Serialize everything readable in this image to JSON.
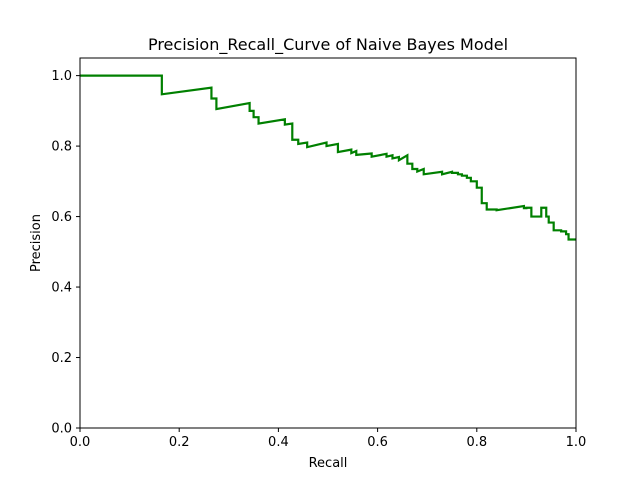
{
  "chart_data": {
    "type": "line",
    "title": "Precision_Recall_Curve of Naive Bayes Model",
    "xlabel": "Recall",
    "ylabel": "Precision",
    "xlim": [
      0.0,
      1.0
    ],
    "ylim": [
      0.0,
      1.05
    ],
    "x_ticks": [
      "0.0",
      "0.2",
      "0.4",
      "0.6",
      "0.8",
      "1.0"
    ],
    "y_ticks": [
      "0.0",
      "0.2",
      "0.4",
      "0.6",
      "0.8",
      "1.0"
    ],
    "grid": false,
    "legend": "none",
    "series": [
      {
        "color": "#008000",
        "step": "vertical-then-horizontal",
        "points": [
          [
            0.0,
            1.0
          ],
          [
            0.165,
            1.0
          ],
          [
            0.165,
            0.947
          ],
          [
            0.265,
            0.966
          ],
          [
            0.265,
            0.935
          ],
          [
            0.275,
            0.935
          ],
          [
            0.275,
            0.905
          ],
          [
            0.342,
            0.922
          ],
          [
            0.342,
            0.9
          ],
          [
            0.35,
            0.9
          ],
          [
            0.35,
            0.882
          ],
          [
            0.36,
            0.882
          ],
          [
            0.36,
            0.864
          ],
          [
            0.413,
            0.876
          ],
          [
            0.413,
            0.861
          ],
          [
            0.428,
            0.864
          ],
          [
            0.428,
            0.818
          ],
          [
            0.44,
            0.818
          ],
          [
            0.44,
            0.806
          ],
          [
            0.458,
            0.81
          ],
          [
            0.458,
            0.797
          ],
          [
            0.497,
            0.81
          ],
          [
            0.497,
            0.8
          ],
          [
            0.52,
            0.806
          ],
          [
            0.52,
            0.783
          ],
          [
            0.547,
            0.79
          ],
          [
            0.547,
            0.78
          ],
          [
            0.557,
            0.786
          ],
          [
            0.557,
            0.775
          ],
          [
            0.588,
            0.779
          ],
          [
            0.588,
            0.77
          ],
          [
            0.618,
            0.778
          ],
          [
            0.618,
            0.77
          ],
          [
            0.63,
            0.774
          ],
          [
            0.63,
            0.765
          ],
          [
            0.643,
            0.769
          ],
          [
            0.643,
            0.76
          ],
          [
            0.66,
            0.774
          ],
          [
            0.66,
            0.75
          ],
          [
            0.67,
            0.75
          ],
          [
            0.67,
            0.735
          ],
          [
            0.68,
            0.735
          ],
          [
            0.68,
            0.728
          ],
          [
            0.693,
            0.735
          ],
          [
            0.693,
            0.72
          ],
          [
            0.73,
            0.727
          ],
          [
            0.73,
            0.72
          ],
          [
            0.75,
            0.727
          ],
          [
            0.75,
            0.724
          ],
          [
            0.762,
            0.724
          ],
          [
            0.762,
            0.72
          ],
          [
            0.77,
            0.72
          ],
          [
            0.77,
            0.716
          ],
          [
            0.78,
            0.716
          ],
          [
            0.78,
            0.71
          ],
          [
            0.788,
            0.71
          ],
          [
            0.788,
            0.7
          ],
          [
            0.8,
            0.7
          ],
          [
            0.8,
            0.682
          ],
          [
            0.81,
            0.682
          ],
          [
            0.81,
            0.638
          ],
          [
            0.82,
            0.638
          ],
          [
            0.82,
            0.62
          ],
          [
            0.84,
            0.62
          ],
          [
            0.84,
            0.618
          ],
          [
            0.895,
            0.63
          ],
          [
            0.895,
            0.624
          ],
          [
            0.9,
            0.624
          ],
          [
            0.9,
            0.625
          ],
          [
            0.91,
            0.625
          ],
          [
            0.91,
            0.6
          ],
          [
            0.93,
            0.6
          ],
          [
            0.93,
            0.625
          ],
          [
            0.94,
            0.625
          ],
          [
            0.94,
            0.6
          ],
          [
            0.945,
            0.6
          ],
          [
            0.945,
            0.583
          ],
          [
            0.955,
            0.583
          ],
          [
            0.955,
            0.561
          ],
          [
            0.97,
            0.561
          ],
          [
            0.97,
            0.558
          ],
          [
            0.98,
            0.558
          ],
          [
            0.98,
            0.55
          ],
          [
            0.985,
            0.55
          ],
          [
            0.985,
            0.535
          ],
          [
            1.0,
            0.535
          ]
        ]
      }
    ]
  }
}
